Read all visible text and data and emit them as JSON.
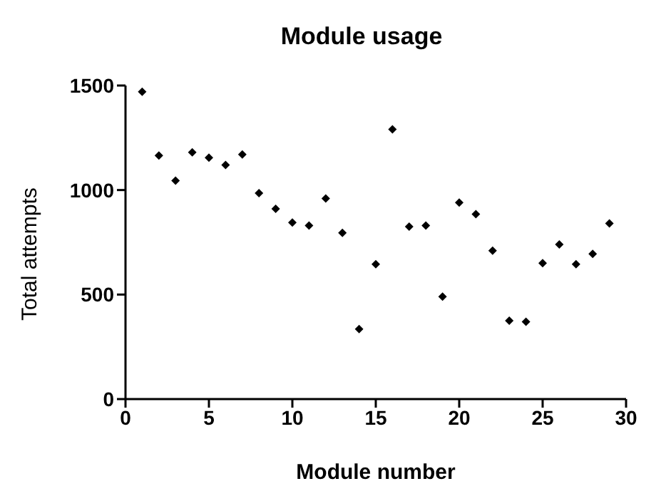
{
  "chart_data": {
    "type": "scatter",
    "title": "Module usage",
    "xlabel": "Module number",
    "ylabel": "Total attempts",
    "x": [
      1,
      2,
      3,
      4,
      5,
      6,
      7,
      8,
      9,
      10,
      11,
      12,
      13,
      14,
      15,
      16,
      17,
      18,
      19,
      20,
      21,
      22,
      23,
      24,
      25,
      26,
      27,
      28,
      29
    ],
    "values": [
      1470,
      1165,
      1045,
      1180,
      1155,
      1120,
      1170,
      985,
      910,
      845,
      830,
      960,
      795,
      335,
      645,
      1290,
      825,
      830,
      490,
      940,
      885,
      710,
      375,
      370,
      650,
      740,
      645,
      695,
      840
    ],
    "color": "#000000",
    "marker": "diamond",
    "xlim": [
      0,
      30
    ],
    "xticks": [
      0,
      5,
      10,
      15,
      20,
      25,
      30
    ],
    "ylim": [
      0,
      1500
    ],
    "yticks": [
      0,
      500,
      1000,
      1500
    ],
    "grid": false,
    "legend": false
  }
}
